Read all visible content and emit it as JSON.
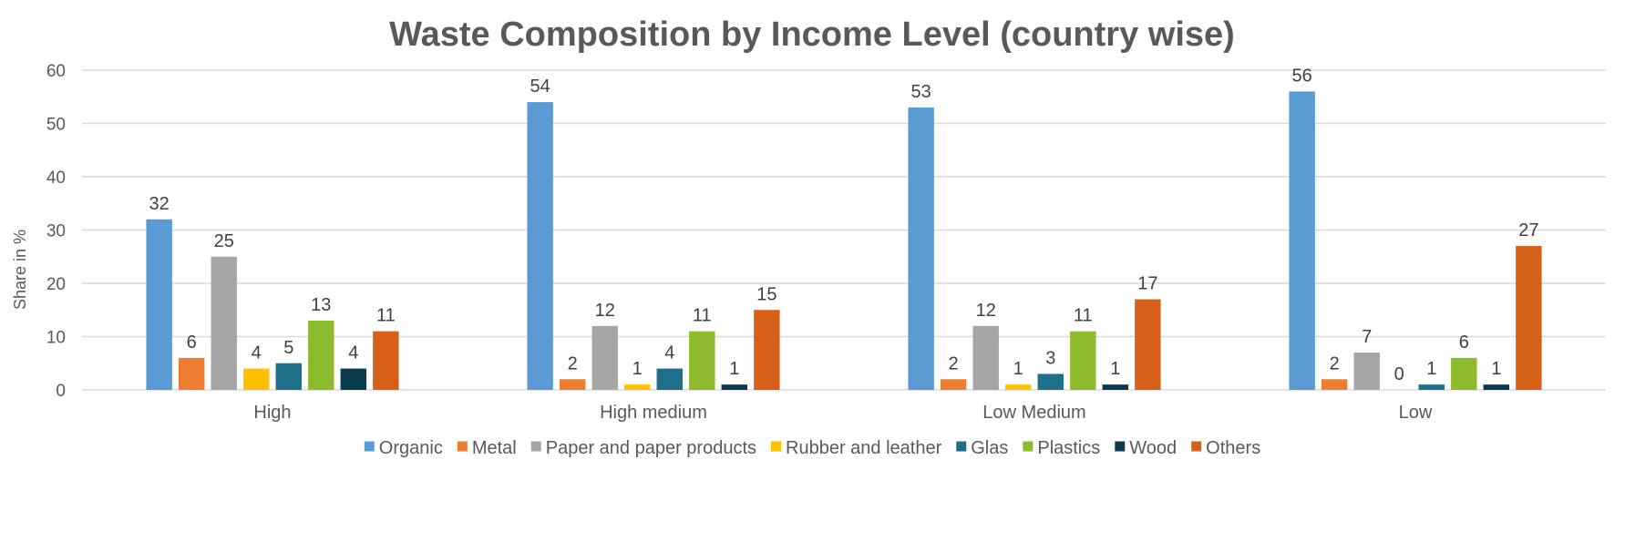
{
  "chart_data": {
    "type": "bar",
    "title": "Waste Composition by Income Level (country wise)",
    "xlabel": "",
    "ylabel": "Share in %",
    "ylim": [
      0,
      60
    ],
    "yticks": [
      0,
      10,
      20,
      30,
      40,
      50,
      60
    ],
    "grid": true,
    "legend_position": "bottom",
    "categories": [
      "High",
      "High medium",
      "Low Medium",
      "Low"
    ],
    "series": [
      {
        "name": "Organic",
        "color": "#5B9BD5",
        "values": [
          32,
          54,
          53,
          56
        ]
      },
      {
        "name": "Metal",
        "color": "#ED7D31",
        "values": [
          6,
          2,
          2,
          2
        ]
      },
      {
        "name": "Paper and paper products",
        "color": "#A5A5A5",
        "values": [
          25,
          12,
          12,
          7
        ]
      },
      {
        "name": "Rubber and leather",
        "color": "#FFC000",
        "values": [
          4,
          1,
          1,
          0
        ]
      },
      {
        "name": "Glas",
        "color": "#1F6F8B",
        "values": [
          5,
          4,
          3,
          1
        ]
      },
      {
        "name": "Plastics",
        "color": "#8DBB2D",
        "values": [
          13,
          11,
          11,
          6
        ]
      },
      {
        "name": "Wood",
        "color": "#0B3C4E",
        "values": [
          4,
          1,
          1,
          1
        ]
      },
      {
        "name": "Others",
        "color": "#D6601A",
        "values": [
          11,
          15,
          17,
          27
        ]
      }
    ]
  }
}
